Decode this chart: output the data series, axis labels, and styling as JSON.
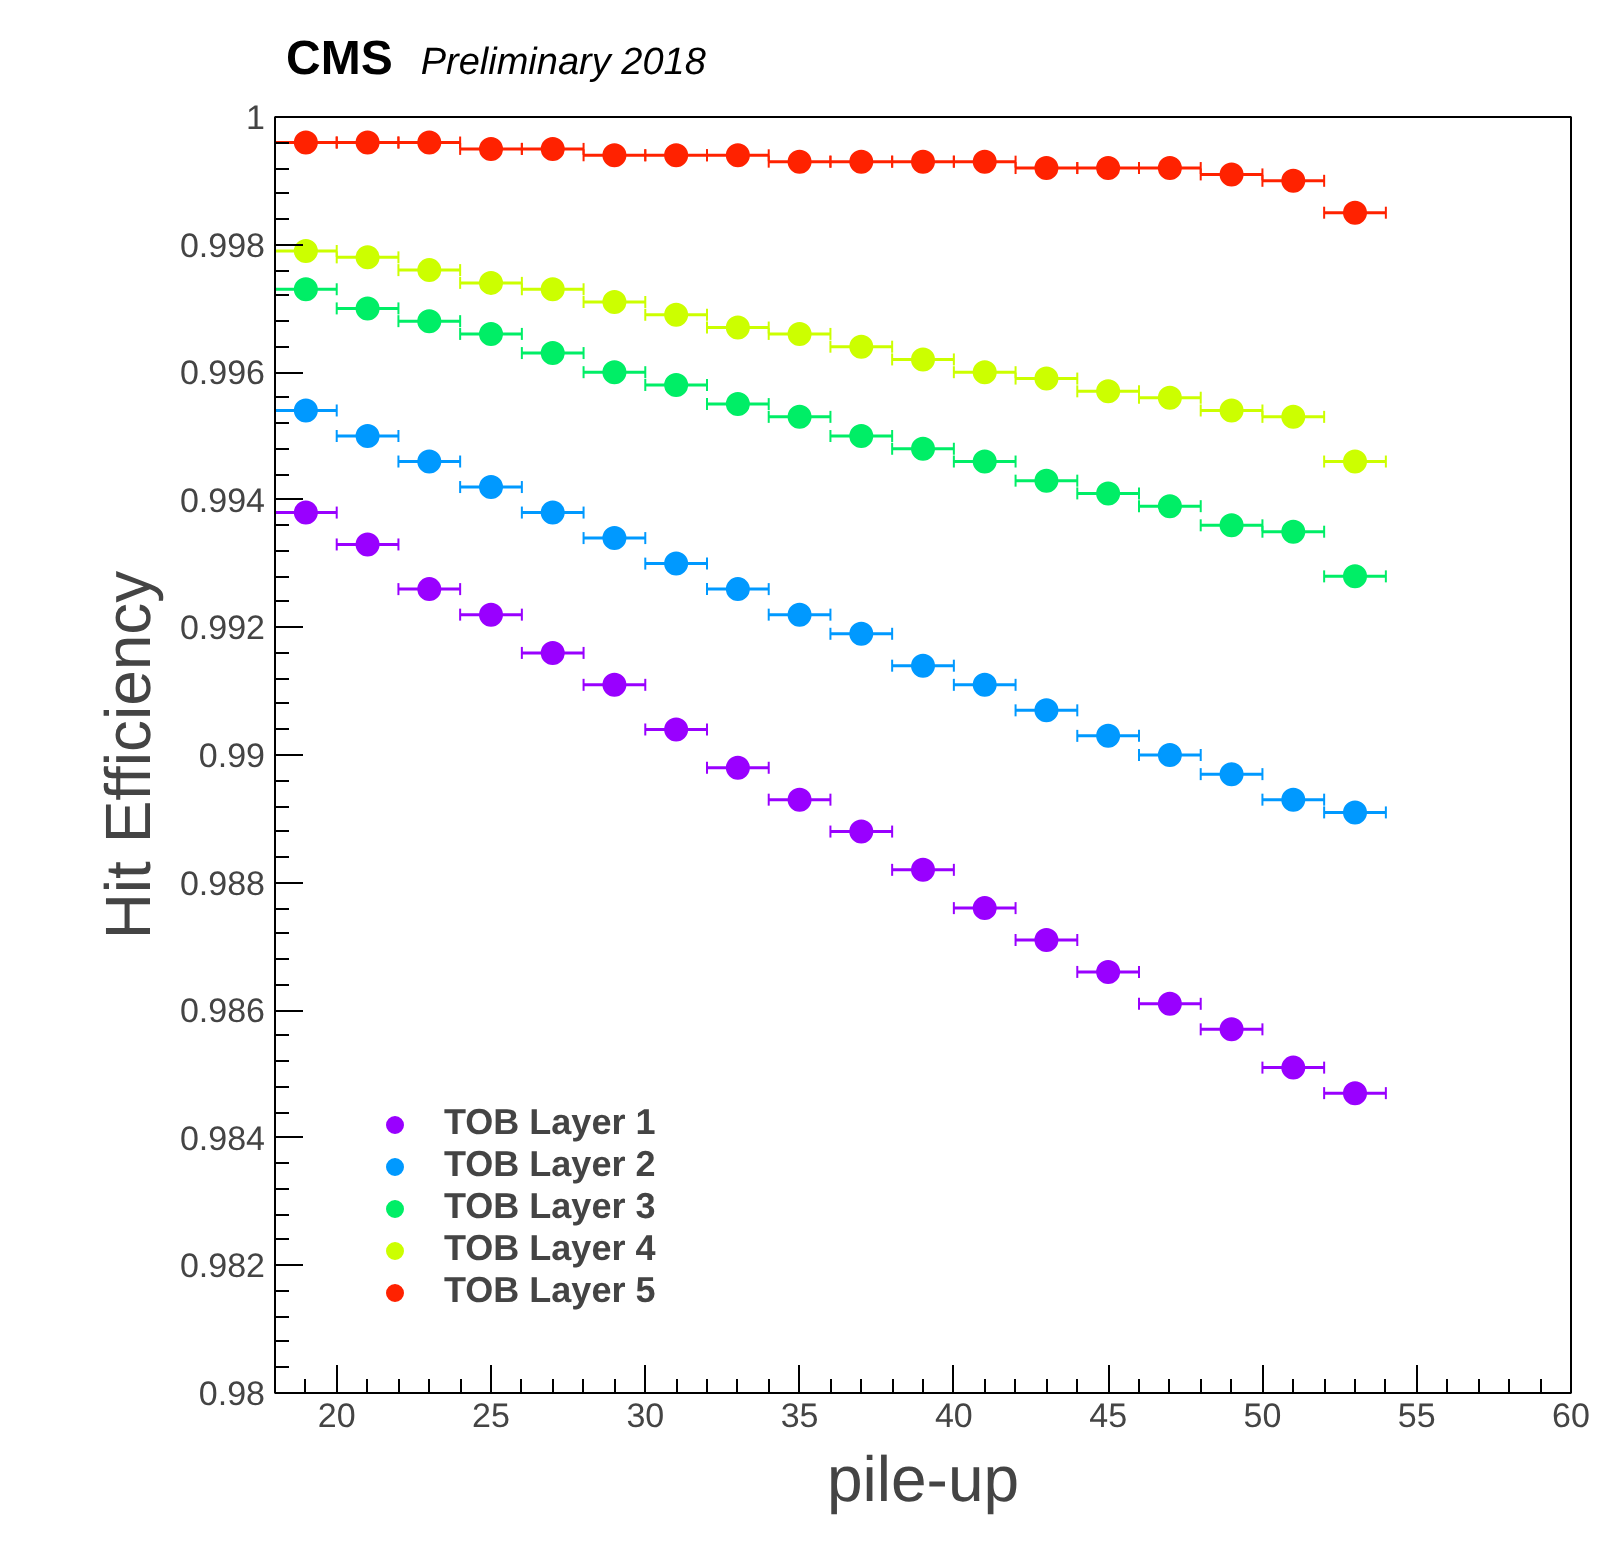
{
  "chart_data": {
    "type": "scatter",
    "title": "CMS",
    "subtitle": "Preliminary 2018",
    "xlabel": "pile-up",
    "ylabel": "Hit Efficiency",
    "x": [
      19,
      21,
      23,
      25,
      27,
      29,
      31,
      33,
      35,
      37,
      39,
      41,
      43,
      45,
      47,
      49,
      51,
      53
    ],
    "series": [
      {
        "name": "TOB Layer 1",
        "color": "#9900ff",
        "xerrors": [
          1,
          1,
          1,
          1,
          1,
          1,
          1,
          1,
          1,
          1,
          1,
          1,
          1,
          1,
          1,
          1,
          1,
          1
        ],
        "values": [
          0.9938,
          0.9933,
          0.9926,
          0.9922,
          0.9916,
          0.9911,
          0.9904,
          0.9898,
          0.9893,
          0.9888,
          0.9882,
          0.9876,
          0.9871,
          0.9866,
          0.9861,
          0.9857,
          0.9851,
          0.9847
        ]
      },
      {
        "name": "TOB Layer 2",
        "color": "#0099ff",
        "xerrors": [
          1,
          1,
          1,
          1,
          1,
          1,
          1,
          1,
          1,
          1,
          1,
          1,
          1,
          1,
          1,
          1,
          1,
          1
        ],
        "values": [
          0.9954,
          0.995,
          0.9946,
          0.9942,
          0.9938,
          0.9934,
          0.993,
          0.9926,
          0.9922,
          0.9919,
          0.9914,
          0.9911,
          0.9907,
          0.9903,
          0.99,
          0.9897,
          0.9893,
          0.9891
        ]
      },
      {
        "name": "TOB Layer 3",
        "color": "#00ee66",
        "xerrors": [
          1,
          1,
          1,
          1,
          1,
          1,
          1,
          1,
          1,
          1,
          1,
          1,
          1,
          1,
          1,
          1,
          1,
          1
        ],
        "values": [
          0.9973,
          0.997,
          0.9968,
          0.9966,
          0.9963,
          0.996,
          0.9958,
          0.9955,
          0.9953,
          0.995,
          0.9948,
          0.9946,
          0.9943,
          0.9941,
          0.9939,
          0.9936,
          0.9935,
          0.9928
        ]
      },
      {
        "name": "TOB Layer 4",
        "color": "#ccff00",
        "xerrors": [
          1,
          1,
          1,
          1,
          1,
          1,
          1,
          1,
          1,
          1,
          1,
          1,
          1,
          1,
          1,
          1,
          1,
          1
        ],
        "values": [
          0.9979,
          0.9978,
          0.9976,
          0.9974,
          0.9973,
          0.9971,
          0.9969,
          0.9967,
          0.9966,
          0.9964,
          0.9962,
          0.996,
          0.9959,
          0.9957,
          0.9956,
          0.9954,
          0.9953,
          0.9946
        ]
      },
      {
        "name": "TOB Layer 5",
        "color": "#ff2200",
        "xerrors": [
          1,
          1,
          1,
          1,
          1,
          1,
          1,
          1,
          1,
          1,
          1,
          1,
          1,
          1,
          1,
          1,
          1,
          1
        ],
        "values": [
          0.9996,
          0.9996,
          0.9996,
          0.9995,
          0.9995,
          0.9994,
          0.9994,
          0.9994,
          0.9993,
          0.9993,
          0.9993,
          0.9993,
          0.9992,
          0.9992,
          0.9992,
          0.9991,
          0.999,
          0.9985
        ]
      }
    ],
    "xlim": [
      18,
      60
    ],
    "xticks": [
      20,
      25,
      30,
      35,
      40,
      45,
      50,
      55,
      60
    ],
    "ylim": [
      0.98,
      1
    ],
    "yticks": [
      0.98,
      0.982,
      0.984,
      0.986,
      0.988,
      0.99,
      0.992,
      0.994,
      0.996,
      0.998,
      1
    ],
    "grid": false,
    "legend": "bottom left",
    "marker": "circle"
  }
}
